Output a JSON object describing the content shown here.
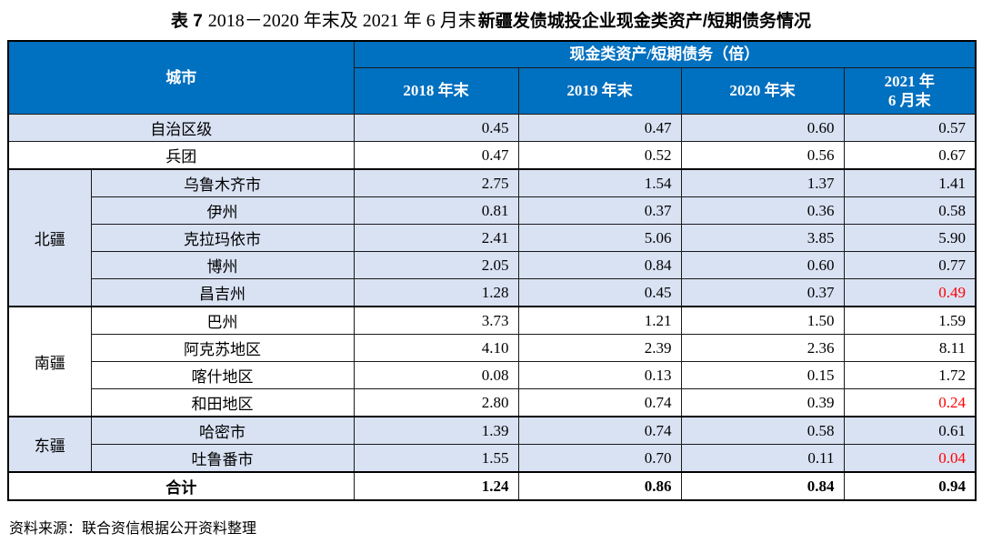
{
  "title": {
    "label": "表 7",
    "range": "2018－2020 年末及 2021 年 6 月末",
    "subject": "新疆发债城投企业现金类资产/短期债务情况"
  },
  "colors": {
    "header_bg": "#0070C0",
    "header_text": "#FFFFFF",
    "band_bg": "#D9E2F3",
    "highlight_red": "#FF0000",
    "border": "#000000"
  },
  "table": {
    "city_header": "城市",
    "metric_header": "现金类资产/短期债务（倍）",
    "periods": [
      "2018 年末",
      "2019 年末",
      "2020 年末"
    ],
    "period_2021": {
      "line1": "2021 年",
      "line2": "6 月末"
    },
    "groups": [
      {
        "label": "北疆"
      },
      {
        "label": "南疆"
      },
      {
        "label": "东疆"
      }
    ],
    "rows": [
      {
        "label": "自治区级",
        "values": [
          "0.45",
          "0.47",
          "0.60",
          "0.57"
        ]
      },
      {
        "label": "兵团",
        "values": [
          "0.47",
          "0.52",
          "0.56",
          "0.67"
        ]
      },
      {
        "label": "乌鲁木齐市",
        "values": [
          "2.75",
          "1.54",
          "1.37",
          "1.41"
        ]
      },
      {
        "label": "伊州",
        "values": [
          "0.81",
          "0.37",
          "0.36",
          "0.58"
        ]
      },
      {
        "label": "克拉玛依市",
        "values": [
          "2.41",
          "5.06",
          "3.85",
          "5.90"
        ]
      },
      {
        "label": "博州",
        "values": [
          "2.05",
          "0.84",
          "0.60",
          "0.77"
        ]
      },
      {
        "label": "昌吉州",
        "values": [
          "1.28",
          "0.45",
          "0.37",
          "0.49"
        ]
      },
      {
        "label": "巴州",
        "values": [
          "3.73",
          "1.21",
          "1.50",
          "1.59"
        ]
      },
      {
        "label": "阿克苏地区",
        "values": [
          "4.10",
          "2.39",
          "2.36",
          "8.11"
        ]
      },
      {
        "label": "喀什地区",
        "values": [
          "0.08",
          "0.13",
          "0.15",
          "1.72"
        ]
      },
      {
        "label": "和田地区",
        "values": [
          "2.80",
          "0.74",
          "0.39",
          "0.24"
        ]
      },
      {
        "label": "哈密市",
        "values": [
          "1.39",
          "0.74",
          "0.58",
          "0.61"
        ]
      },
      {
        "label": "吐鲁番市",
        "values": [
          "1.55",
          "0.70",
          "0.11",
          "0.04"
        ]
      }
    ],
    "total": {
      "label": "合计",
      "values": [
        "1.24",
        "0.86",
        "0.84",
        "0.94"
      ]
    }
  },
  "footer": {
    "source": "资料来源：联合资信根据公开资料整理"
  }
}
